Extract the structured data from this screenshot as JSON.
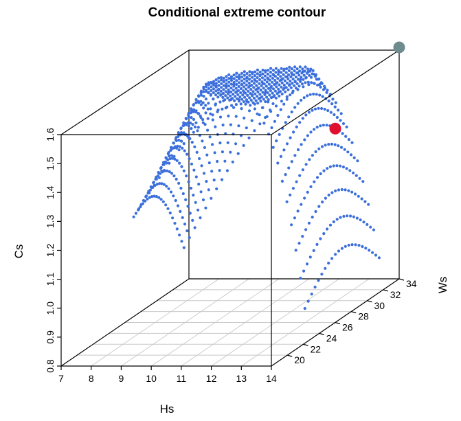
{
  "chart_data": {
    "type": "scatter",
    "title": "Conditional extreme contour",
    "xlabel": "Hs",
    "ylabel": "Ws",
    "zlabel": "Cs",
    "xlim": [
      7,
      14
    ],
    "ylim": [
      18,
      34
    ],
    "zlim": [
      0.8,
      1.6
    ],
    "x_ticks": [
      "7",
      "8",
      "9",
      "10",
      "11",
      "12",
      "13",
      "14"
    ],
    "y_ticks": [
      "20",
      "22",
      "24",
      "26",
      "28",
      "30",
      "32",
      "34"
    ],
    "z_ticks": [
      "0.8",
      "0.9",
      "1.0",
      "1.1",
      "1.2",
      "1.3",
      "1.4",
      "1.5",
      "1.6"
    ],
    "grid": true,
    "surface_color": "#3B6FDB",
    "surface_description": "dense point cloud forming an arched contour surface, rising from Cs about 1.1 at Hs 7-9 to a crest near Cs 1.6 around Hs 11-13, dropping to about 0.85 at Hs 14",
    "highlight_points": [
      {
        "Hs": 14.0,
        "Ws": 26.0,
        "Cs": 1.47,
        "color": "#E0102F"
      },
      {
        "Hs": 14.0,
        "Ws": 34.0,
        "Cs": 1.6,
        "color": "#6E8B8E"
      }
    ]
  }
}
